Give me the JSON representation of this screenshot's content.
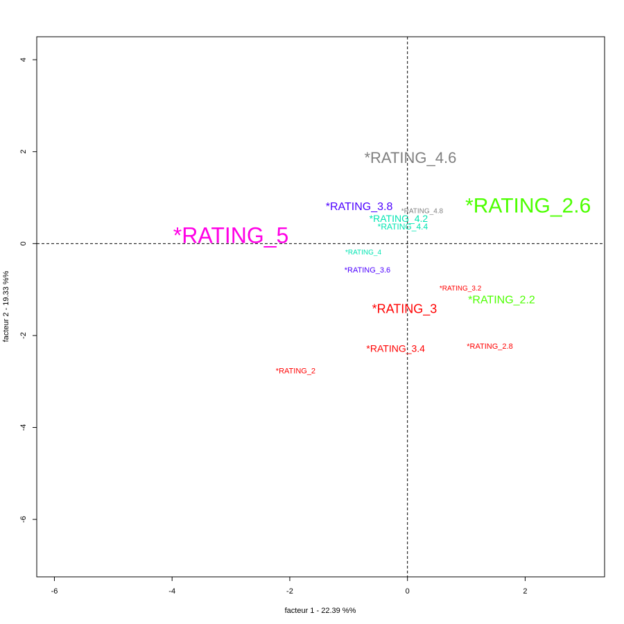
{
  "chart_data": {
    "type": "scatter",
    "title": "",
    "xlabel": "facteur  1  - 22.39 %%",
    "ylabel": "facteur  2  - 19.33 %%",
    "xlim": [
      -6.3,
      3.35
    ],
    "ylim": [
      -7.25,
      4.5
    ],
    "xticks": [
      -6,
      -4,
      -2,
      0,
      2
    ],
    "yticks": [
      -6,
      -4,
      -2,
      0,
      2,
      4
    ],
    "grid": false,
    "reference_lines": {
      "x": 0,
      "y": 0,
      "style": "dashed"
    },
    "points": [
      {
        "label": "*RATING_4.6",
        "x": 0.05,
        "y": 1.87,
        "color": "#7f7f7f",
        "size": 22
      },
      {
        "label": "*RATING_2.6",
        "x": 2.05,
        "y": 0.82,
        "color": "#4cff00",
        "size": 30
      },
      {
        "label": "*RATING_3.8",
        "x": -0.82,
        "y": 0.8,
        "color": "#4c00ff",
        "size": 16
      },
      {
        "label": "*RATING_4.8",
        "x": 0.25,
        "y": 0.7,
        "color": "#7f7f7f",
        "size": 10
      },
      {
        "label": "*RATING_4.2",
        "x": -0.15,
        "y": 0.55,
        "color": "#00e5b2",
        "size": 14
      },
      {
        "label": "*RATING_4.4",
        "x": -0.08,
        "y": 0.37,
        "color": "#00e5b2",
        "size": 12
      },
      {
        "label": "*RATING_5",
        "x": -3.0,
        "y": 0.18,
        "color": "#ff00e5",
        "size": 32
      },
      {
        "label": "*RATING_4",
        "x": -0.75,
        "y": -0.2,
        "color": "#00e5b2",
        "size": 10
      },
      {
        "label": "*RATING_3.6",
        "x": -0.68,
        "y": -0.58,
        "color": "#4c00ff",
        "size": 11
      },
      {
        "label": "*RATING_3.2",
        "x": 0.9,
        "y": -0.98,
        "color": "#ff0000",
        "size": 10
      },
      {
        "label": "*RATING_2.2",
        "x": 1.6,
        "y": -1.23,
        "color": "#4cff00",
        "size": 16
      },
      {
        "label": "*RATING_3",
        "x": -0.05,
        "y": -1.42,
        "color": "#ff0000",
        "size": 18
      },
      {
        "label": "*RATING_3.4",
        "x": -0.2,
        "y": -2.28,
        "color": "#ff0000",
        "size": 14
      },
      {
        "label": "*RATING_2.8",
        "x": 1.4,
        "y": -2.24,
        "color": "#ff0000",
        "size": 11
      },
      {
        "label": "*RATING_2",
        "x": -1.9,
        "y": -2.78,
        "color": "#ff0000",
        "size": 11
      }
    ]
  }
}
